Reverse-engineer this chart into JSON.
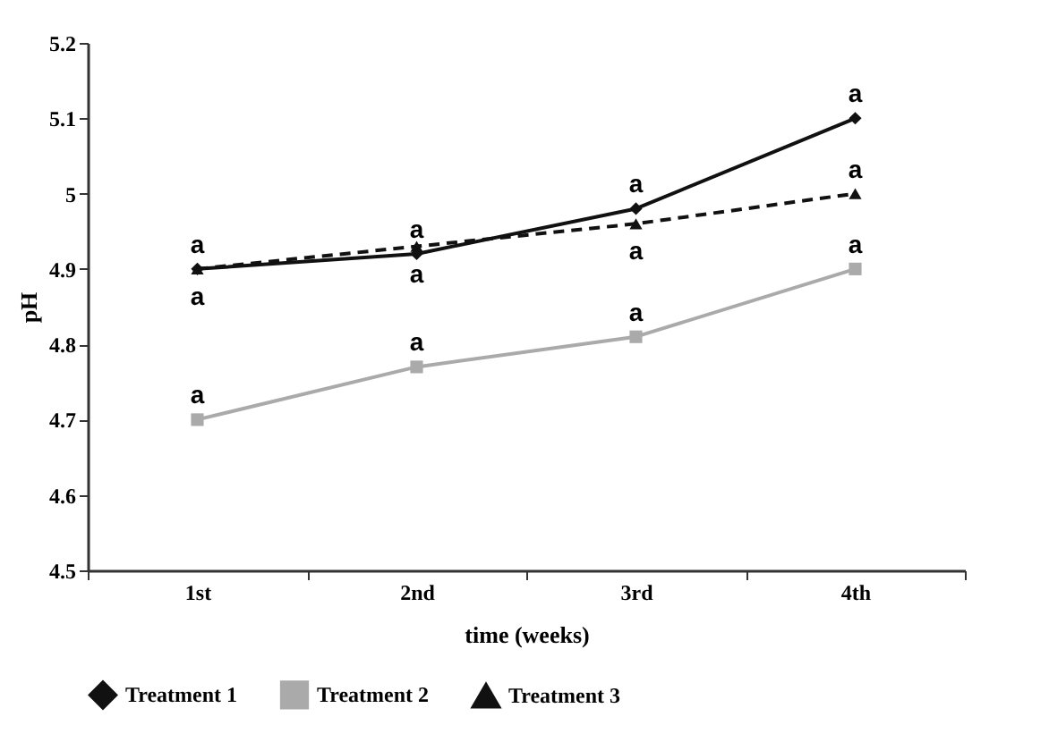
{
  "chart_data": {
    "type": "line",
    "xlabel": "time (weeks)",
    "ylabel": "pH",
    "categories": [
      "1st",
      "2nd",
      "3rd",
      "4th"
    ],
    "ylim": [
      4.5,
      5.2
    ],
    "yticks": [
      4.5,
      4.6,
      4.7,
      4.8,
      4.9,
      5,
      5.1,
      5.2
    ],
    "grid": false,
    "legend": "bottom",
    "series": [
      {
        "name": "Treatment 1",
        "color": "#111111",
        "marker": "diamond",
        "line_style": "solid",
        "values": [
          4.9,
          4.92,
          4.98,
          5.1
        ]
      },
      {
        "name": "Treatment 2",
        "color": "#aaaaaa",
        "marker": "square",
        "line_style": "solid",
        "values": [
          4.7,
          4.77,
          4.81,
          4.9
        ]
      },
      {
        "name": "Treatment 3",
        "color": "#111111",
        "marker": "triangle",
        "line_style": "dashed",
        "values": [
          4.9,
          4.93,
          4.96,
          5.0
        ]
      }
    ],
    "annotations": [
      {
        "text": "a",
        "x": "1st",
        "y": 4.9
      },
      {
        "text": "a",
        "x": "2nd",
        "y": 4.92
      },
      {
        "text": "a",
        "x": "3rd",
        "y": 4.98
      },
      {
        "text": "a",
        "x": "4th",
        "y": 5.1
      },
      {
        "text": "a",
        "x": "1st",
        "y": 4.7
      },
      {
        "text": "a",
        "x": "2nd",
        "y": 4.77
      },
      {
        "text": "a",
        "x": "3rd",
        "y": 4.81
      },
      {
        "text": "a",
        "x": "4th",
        "y": 4.9
      },
      {
        "text": "a",
        "x": "4th",
        "y": 5.0
      },
      {
        "text": "a",
        "x": "1st",
        "y": 4.9
      },
      {
        "text": "a",
        "x": "2nd",
        "y": 4.93
      },
      {
        "text": "a",
        "x": "3rd",
        "y": 4.96
      }
    ]
  }
}
